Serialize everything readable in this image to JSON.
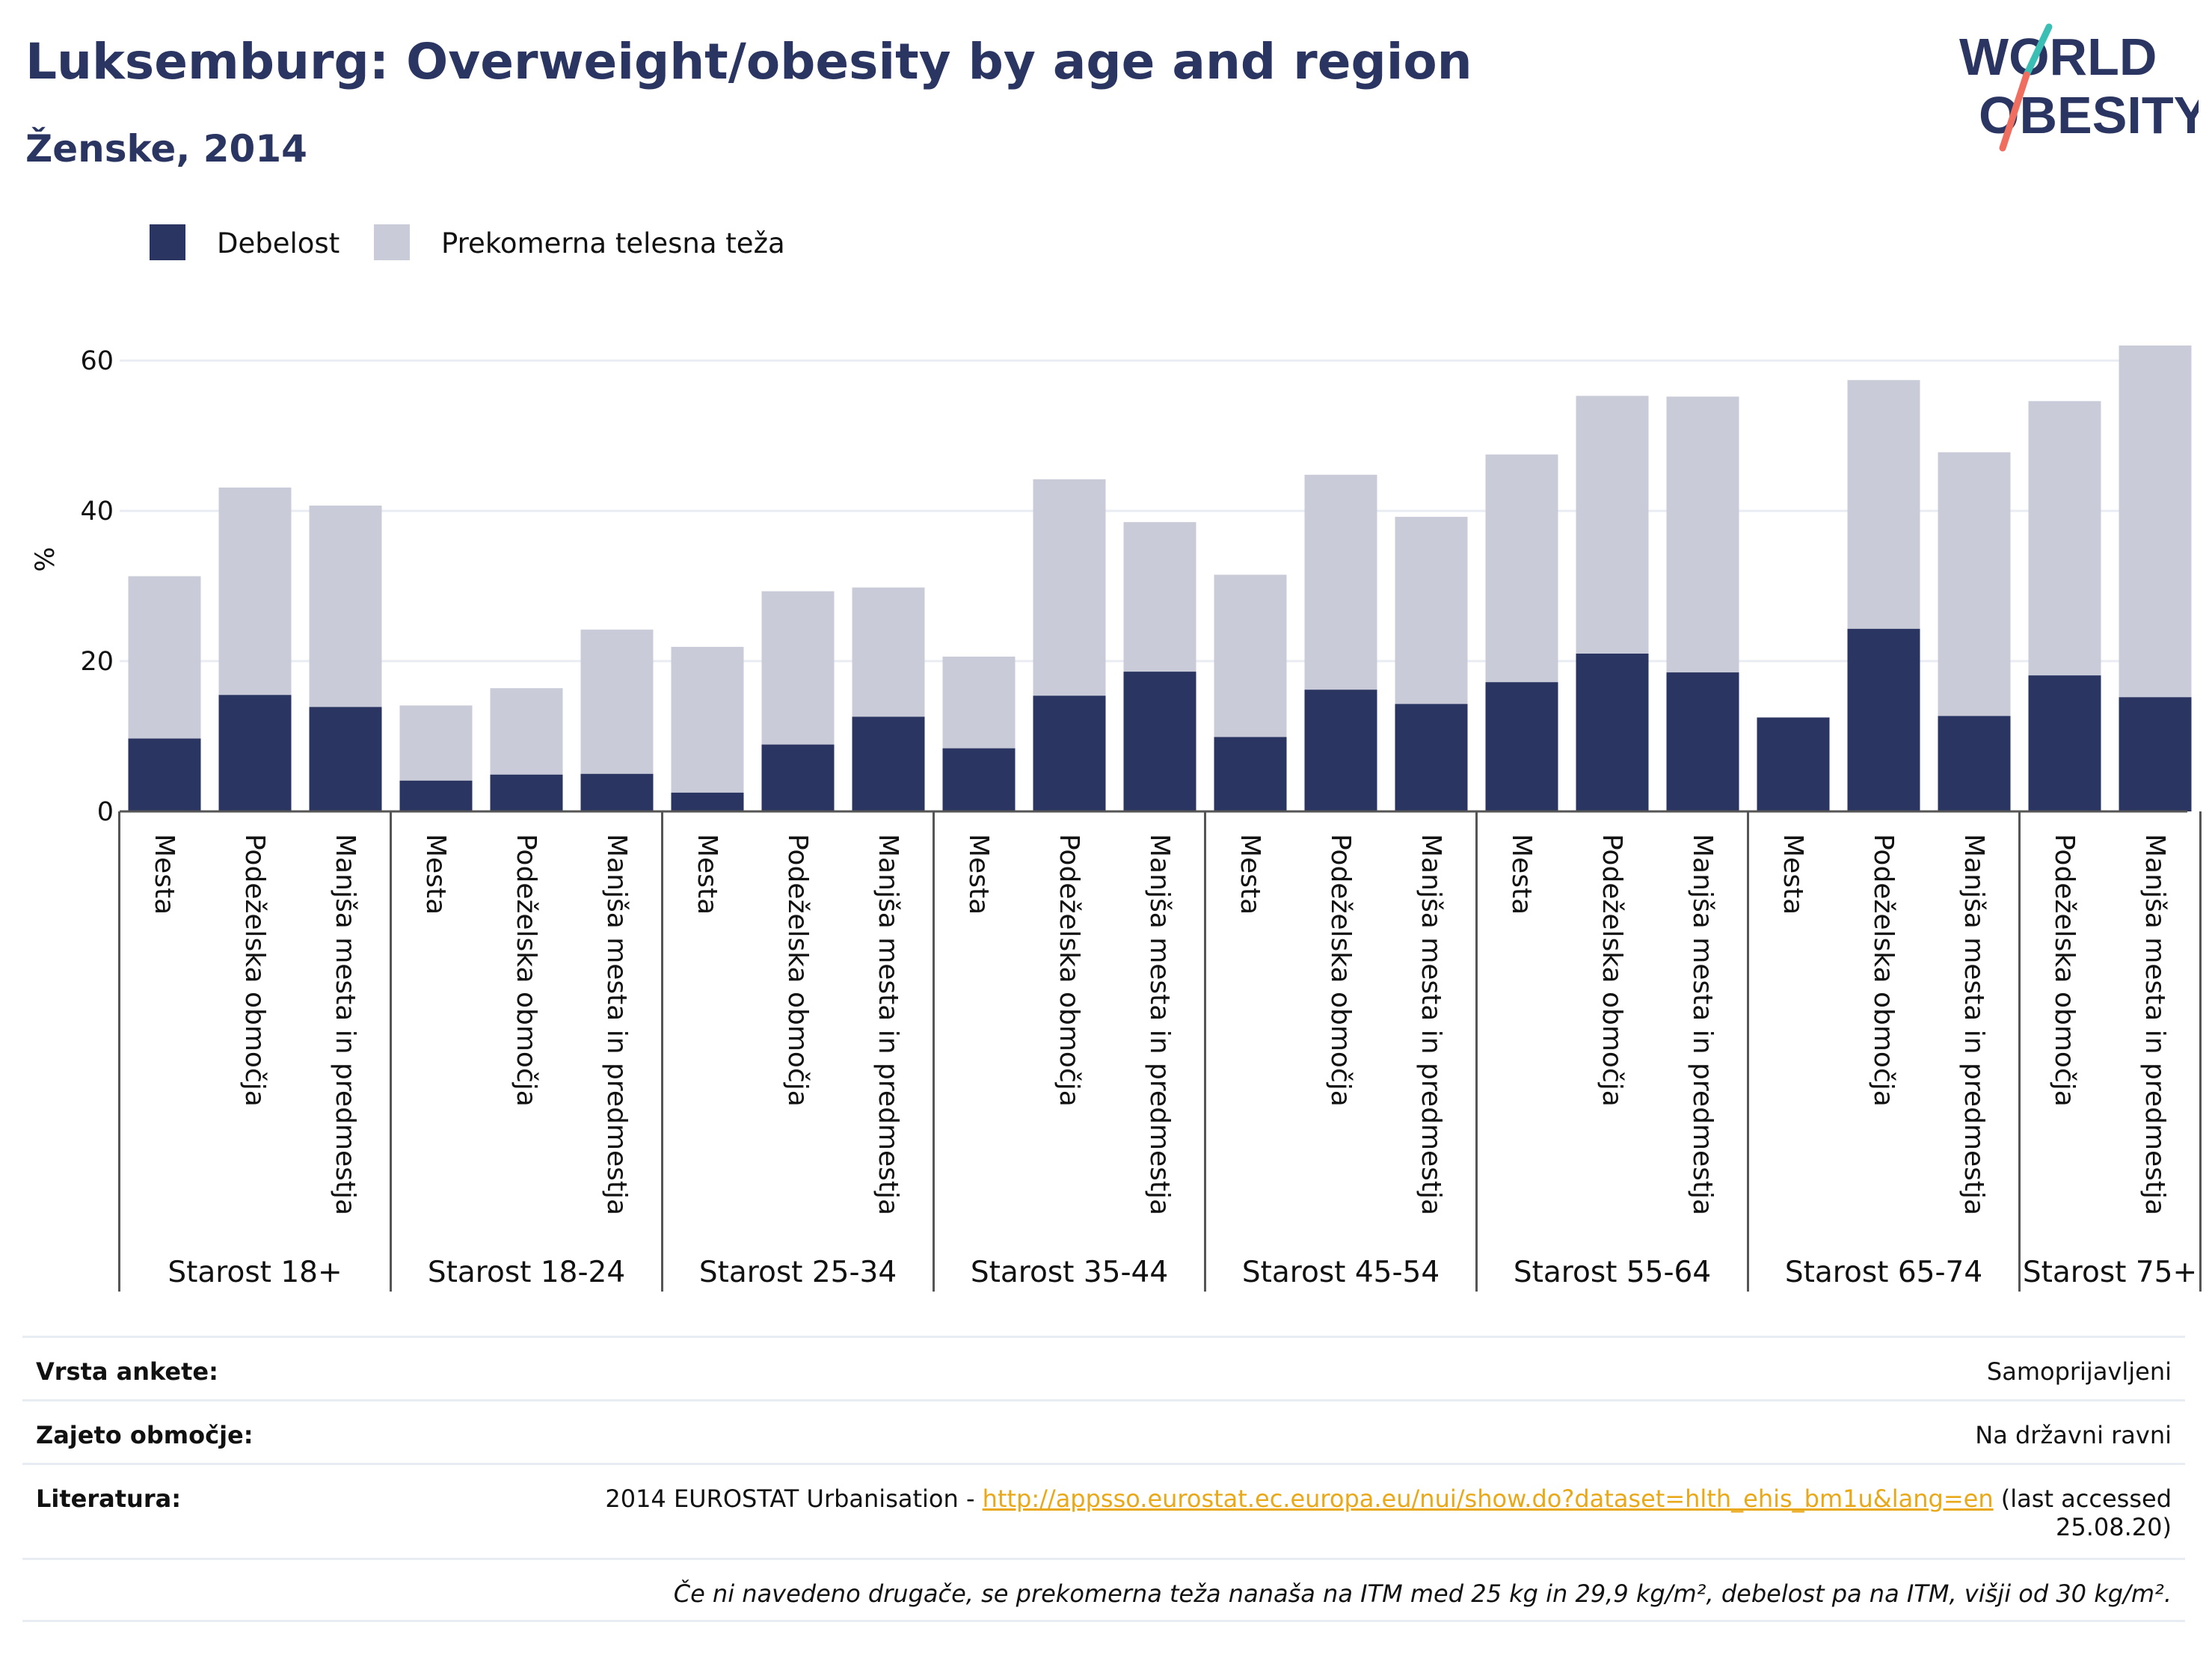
{
  "title": "Luksemburg: Overweight/obesity by age and region",
  "subtitle": "Ženske, 2014",
  "logo": {
    "line1": "WORLD",
    "line2": "OBESITY"
  },
  "colors": {
    "obesity": "#2a3561",
    "overweight": "#c9ccd8",
    "text": "#2a3561",
    "link": "#e9a818"
  },
  "chart_data": {
    "type": "bar",
    "stacked": true,
    "ylabel": "%",
    "ylim": [
      0,
      62
    ],
    "yticks": [
      0,
      20,
      40,
      60
    ],
    "grid": true,
    "legend_position": "top-left",
    "groups": [
      {
        "label": "Starost 18+",
        "categories": [
          "Mesta",
          "Podeželska območja",
          "Manjša mesta in predmestja"
        ]
      },
      {
        "label": "Starost 18-24",
        "categories": [
          "Mesta",
          "Podeželska območja",
          "Manjša mesta in predmestja"
        ]
      },
      {
        "label": "Starost 25-34",
        "categories": [
          "Mesta",
          "Podeželska območja",
          "Manjša mesta in predmestja"
        ]
      },
      {
        "label": "Starost 35-44",
        "categories": [
          "Mesta",
          "Podeželska območja",
          "Manjša mesta in predmestja"
        ]
      },
      {
        "label": "Starost 45-54",
        "categories": [
          "Mesta",
          "Podeželska območja",
          "Manjša mesta in predmestja"
        ]
      },
      {
        "label": "Starost 55-64",
        "categories": [
          "Mesta",
          "Podeželska območja",
          "Manjša mesta in predmestja"
        ]
      },
      {
        "label": "Starost 65-74",
        "categories": [
          "Mesta",
          "Podeželska območja",
          "Manjša mesta in predmestja"
        ]
      },
      {
        "label": "Starost 75+",
        "categories": [
          "Podeželska območja",
          "Manjša mesta in predmestja"
        ]
      }
    ],
    "series": [
      {
        "name": "Debelost",
        "values": [
          9.7,
          15.5,
          13.9,
          4.1,
          4.9,
          5.0,
          2.5,
          8.9,
          12.6,
          8.4,
          15.4,
          18.6,
          9.9,
          16.2,
          14.3,
          17.2,
          21.0,
          18.5,
          12.5,
          24.3,
          12.7,
          18.1,
          15.2
        ]
      },
      {
        "name": "Prekomerna telesna teža",
        "values": [
          21.6,
          27.6,
          26.8,
          10.0,
          11.5,
          19.2,
          19.4,
          20.4,
          17.2,
          12.2,
          28.8,
          19.9,
          21.6,
          28.6,
          24.9,
          30.3,
          34.3,
          36.7,
          0.0,
          33.1,
          35.1,
          36.5,
          46.8
        ]
      }
    ]
  },
  "info": {
    "rows": [
      {
        "label": "Vrsta ankete:",
        "value": "Samoprijavljeni"
      },
      {
        "label": "Zajeto območje:",
        "value": "Na državni ravni"
      },
      {
        "label": "Literatura:",
        "value_prefix": "2014 EUROSTAT Urbanisation - ",
        "link": "http://appsso.eurostat.ec.europa.eu/nui/show.do?dataset=hlth_ehis_bm1u&lang=en",
        "value_suffix": " (last accessed",
        "value_line2": "25.08.20)"
      }
    ],
    "note": "Če ni navedeno drugače, se prekomerna teža nanaša na ITM med 25 kg in 29,9 kg/m², debelost pa na ITM, višji od 30 kg/m²."
  }
}
